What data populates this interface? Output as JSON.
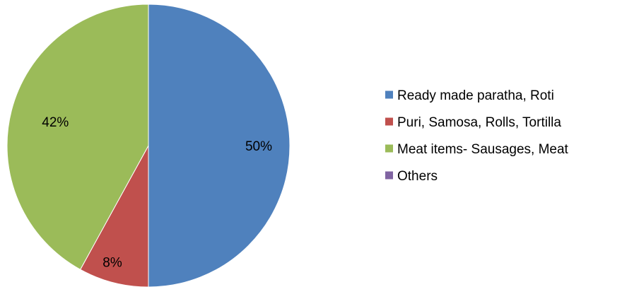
{
  "chart_data": {
    "type": "pie",
    "categories": [
      "Ready made paratha, Roti",
      "Puri, Samosa, Rolls, Tortilla",
      "Meat items- Sausages, Meat",
      "Others"
    ],
    "values": [
      50,
      8,
      42,
      0
    ],
    "data_labels": [
      "50%",
      "8%",
      "42%",
      ""
    ],
    "colors": [
      "#4F81BD",
      "#C0504D",
      "#9BBB59",
      "#8064A2"
    ],
    "legend_position": "right",
    "start_angle_deg": 0,
    "direction": "clockwise"
  }
}
